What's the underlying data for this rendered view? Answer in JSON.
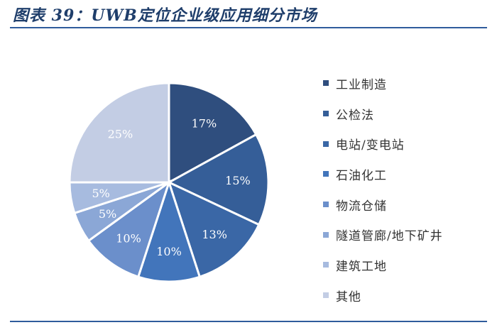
{
  "title": "图表 39：UWB定位企业级应用细分市场",
  "chart_data": {
    "type": "pie",
    "title": "",
    "legend_position": "right",
    "slices": [
      {
        "name": "工业制造",
        "value": 17,
        "label": "17%",
        "color": "#2f4e7e"
      },
      {
        "name": "公检法",
        "value": 15,
        "label": "15%",
        "color": "#355e98"
      },
      {
        "name": "电站/变电站",
        "value": 13,
        "label": "13%",
        "color": "#3a67a6"
      },
      {
        "name": "石油化工",
        "value": 10,
        "label": "10%",
        "color": "#4275bb"
      },
      {
        "name": "物流仓储",
        "value": 10,
        "label": "10%",
        "color": "#6b8fcb"
      },
      {
        "name": "隧道管廊/地下矿井",
        "value": 5,
        "label": "5%",
        "color": "#8ba7d6"
      },
      {
        "name": "建筑工地",
        "value": 5,
        "label": "5%",
        "color": "#a7bbdf"
      },
      {
        "name": "其他",
        "value": 25,
        "label": "25%",
        "color": "#c3cde4"
      }
    ]
  }
}
